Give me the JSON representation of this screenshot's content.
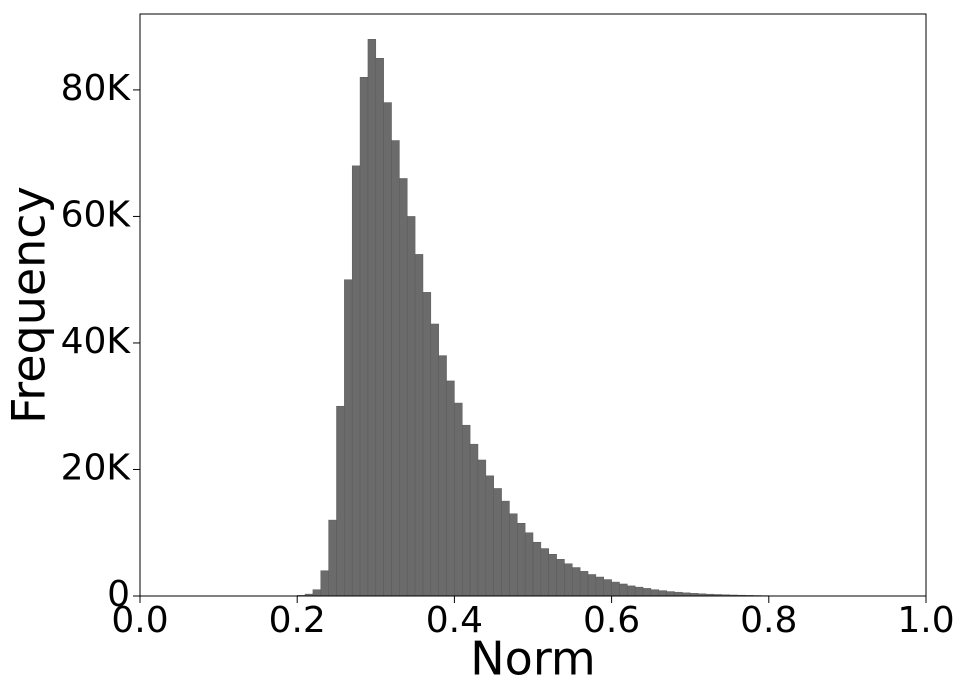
{
  "chart_data": {
    "type": "histogram",
    "xlabel": "Norm",
    "ylabel": "Frequency",
    "color": "#6b6b6b",
    "bins": [
      0.2,
      0.21,
      0.22,
      0.23,
      0.24,
      0.25,
      0.26,
      0.27,
      0.28,
      0.29,
      0.3,
      0.31,
      0.32,
      0.33,
      0.34,
      0.35,
      0.36,
      0.37,
      0.38,
      0.39,
      0.4,
      0.41,
      0.42,
      0.43,
      0.44,
      0.45,
      0.46,
      0.47,
      0.48,
      0.49,
      0.5,
      0.51,
      0.52,
      0.53,
      0.54,
      0.55,
      0.56,
      0.57,
      0.58,
      0.59,
      0.6,
      0.61,
      0.62,
      0.63,
      0.64,
      0.65,
      0.66,
      0.67,
      0.68,
      0.69,
      0.7,
      0.71,
      0.72,
      0.73,
      0.74,
      0.75,
      0.76,
      0.77,
      0.78,
      0.79,
      0.8,
      0.81
    ],
    "values": [
      100,
      300,
      1000,
      4000,
      12000,
      30000,
      50000,
      68000,
      82000,
      88000,
      85000,
      78000,
      72000,
      66000,
      60000,
      54000,
      48000,
      43000,
      38000,
      34000,
      30500,
      27000,
      24000,
      21500,
      19000,
      17000,
      15000,
      13000,
      11500,
      10000,
      8500,
      7500,
      6600,
      5800,
      5100,
      4500,
      3900,
      3400,
      3000,
      2600,
      2200,
      1900,
      1600,
      1400,
      1200,
      1000,
      850,
      700,
      600,
      500,
      420,
      350,
      290,
      240,
      200,
      160,
      130,
      100,
      80,
      60,
      40
    ],
    "xlim": [
      0,
      1
    ],
    "ylim": [
      0,
      92000
    ],
    "xticks": [
      {
        "value": 0,
        "label": "0.0"
      },
      0.2,
      0.4,
      0.6,
      0.8,
      {
        "value": 1,
        "label": "1.0"
      }
    ],
    "yticks": [
      0,
      {
        "value": 20000,
        "label": "20K"
      },
      {
        "value": 40000,
        "label": "40K"
      },
      {
        "value": 60000,
        "label": "60K"
      },
      {
        "value": 80000,
        "label": "80K"
      }
    ]
  }
}
